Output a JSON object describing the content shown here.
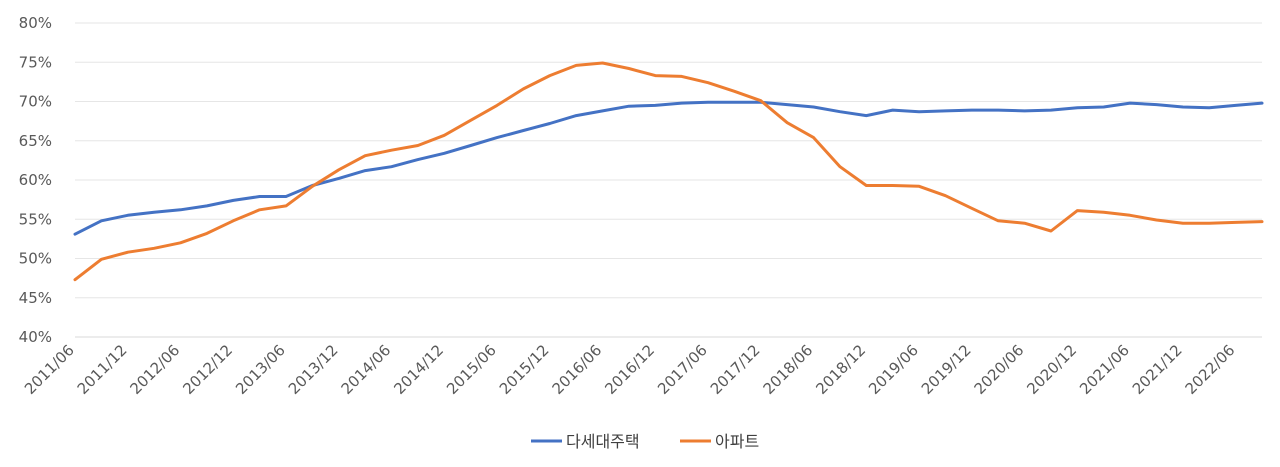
{
  "chart_data": {
    "type": "line",
    "title": "",
    "xlabel": "",
    "ylabel": "",
    "ylim": [
      40,
      80
    ],
    "ytick_step": 5,
    "y_tick_labels": [
      "40%",
      "45%",
      "50%",
      "55%",
      "60%",
      "65%",
      "70%",
      "75%",
      "80%"
    ],
    "x_tick_labels": [
      "2011/06",
      "2011/12",
      "2012/06",
      "2012/12",
      "2013/06",
      "2013/12",
      "2014/06",
      "2014/12",
      "2015/06",
      "2015/12",
      "2016/06",
      "2016/12",
      "2017/06",
      "2017/12",
      "2018/06",
      "2018/12",
      "2019/06",
      "2019/12",
      "2020/06",
      "2020/12",
      "2021/06",
      "2021/12",
      "2022/06"
    ],
    "grid": true,
    "legend_position": "bottom",
    "x": [
      "2011/06",
      "2011/09",
      "2011/12",
      "2012/03",
      "2012/06",
      "2012/09",
      "2012/12",
      "2013/03",
      "2013/06",
      "2013/09",
      "2013/12",
      "2014/03",
      "2014/06",
      "2014/09",
      "2014/12",
      "2015/03",
      "2015/06",
      "2015/09",
      "2015/12",
      "2016/03",
      "2016/06",
      "2016/09",
      "2016/12",
      "2017/03",
      "2017/06",
      "2017/09",
      "2017/12",
      "2018/03",
      "2018/06",
      "2018/09",
      "2018/12",
      "2019/03",
      "2019/06",
      "2019/09",
      "2019/12",
      "2020/03",
      "2020/06",
      "2020/09",
      "2020/12",
      "2021/03",
      "2021/06",
      "2021/09",
      "2021/12",
      "2022/03",
      "2022/06",
      "2022/09"
    ],
    "series": [
      {
        "name": "다세대주택",
        "color": "#4472C4",
        "values": [
          53.1,
          54.8,
          55.5,
          55.9,
          56.2,
          56.7,
          57.4,
          57.9,
          57.9,
          59.3,
          60.2,
          61.2,
          61.7,
          62.6,
          63.4,
          64.4,
          65.4,
          66.3,
          67.2,
          68.2,
          68.8,
          69.4,
          69.5,
          69.8,
          69.9,
          69.9,
          69.9,
          69.6,
          69.3,
          68.7,
          68.2,
          68.9,
          68.7,
          68.8,
          68.9,
          68.9,
          68.8,
          68.9,
          69.2,
          69.3,
          69.8,
          69.6,
          69.3,
          69.2,
          69.5,
          69.8
        ]
      },
      {
        "name": "아파트",
        "color": "#ED7D31",
        "values": [
          47.3,
          49.9,
          50.8,
          51.3,
          52.0,
          53.2,
          54.8,
          56.2,
          56.7,
          59.2,
          61.3,
          63.1,
          63.8,
          64.4,
          65.7,
          67.6,
          69.5,
          71.6,
          73.3,
          74.6,
          74.9,
          74.2,
          73.3,
          73.2,
          72.4,
          71.3,
          70.1,
          67.3,
          65.4,
          61.7,
          59.3,
          59.3,
          59.2,
          58.0,
          56.4,
          54.8,
          54.5,
          53.5,
          56.1,
          55.9,
          55.5,
          54.9,
          54.5,
          54.5,
          54.6,
          54.7
        ]
      }
    ]
  }
}
